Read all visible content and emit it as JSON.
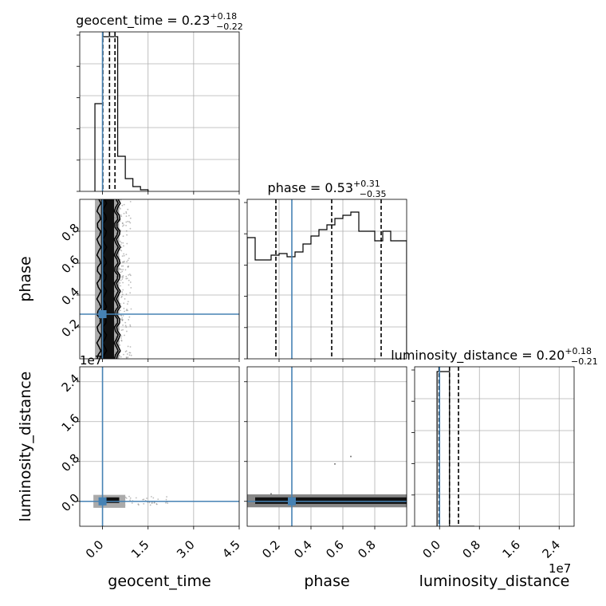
{
  "colors": {
    "truth": "#4682b4",
    "hist": "#000000",
    "grid": "#b0b0b0",
    "density": "#000000"
  },
  "chart_data": {
    "type": "corner",
    "parameters": [
      "geocent_time",
      "phase",
      "luminosity_distance"
    ],
    "axis_labels": {
      "geocent_time": "geocent_time",
      "phase": "phase",
      "luminosity_distance": "luminosity_distance"
    },
    "titles": [
      {
        "param": "geocent_time",
        "name": "geocent_time",
        "median": "0.23",
        "plus": "+0.18",
        "minus": "−0.22"
      },
      {
        "param": "phase",
        "name": "phase",
        "median": "0.53",
        "plus": "+0.31",
        "minus": "−0.35"
      },
      {
        "param": "luminosity_distance",
        "name": "luminosity_distance",
        "median": "0.20",
        "plus": "+0.18",
        "minus": "−0.21"
      }
    ],
    "offset_text": "1e7",
    "ranges": {
      "geocent_time": [
        -0.75,
        4.5
      ],
      "phase": [
        0.0,
        1.0
      ],
      "luminosity_distance": [
        -0.5,
        2.7
      ]
    },
    "ticks": {
      "geocent_time": {
        "values": [
          0.0,
          1.5,
          3.0,
          4.5
        ],
        "labels": [
          "0.0",
          "1.5",
          "3.0",
          "4.5"
        ]
      },
      "phase_x": {
        "values": [
          0.2,
          0.4,
          0.6,
          0.8
        ],
        "labels": [
          "0.2",
          "0.4",
          "0.6",
          "0.8"
        ]
      },
      "phase_y": {
        "values": [
          0.2,
          0.4,
          0.6,
          0.8
        ],
        "labels": [
          "0.2",
          "0.4",
          "0.6",
          "0.8"
        ]
      },
      "luminosity_distance": {
        "values": [
          0.0,
          0.8,
          1.6,
          2.4
        ],
        "labels": [
          "0.0",
          "0.8",
          "1.6",
          "2.4"
        ]
      }
    },
    "truths": {
      "geocent_time": 0.0,
      "phase": 0.28,
      "luminosity_distance": 0.0
    },
    "quantiles": {
      "geocent_time": [
        0.01,
        0.23,
        0.41
      ],
      "phase": [
        0.18,
        0.53,
        0.84
      ],
      "luminosity_distance": [
        -0.01,
        0.2,
        0.38
      ]
    },
    "histograms": {
      "geocent_time": {
        "edges": [
          -0.25,
          0.0,
          0.25,
          0.5,
          0.75,
          1.0,
          1.25,
          1.5
        ],
        "values": [
          0.55,
          0.97,
          0.97,
          0.22,
          0.08,
          0.03,
          0.01
        ]
      },
      "phase": {
        "edges": [
          0.0,
          0.05,
          0.1,
          0.15,
          0.2,
          0.25,
          0.3,
          0.35,
          0.4,
          0.45,
          0.5,
          0.55,
          0.6,
          0.65,
          0.7,
          0.75,
          0.8,
          0.85,
          0.9,
          0.95,
          1.0
        ],
        "values": [
          0.76,
          0.62,
          0.62,
          0.65,
          0.66,
          0.64,
          0.67,
          0.72,
          0.77,
          0.81,
          0.84,
          0.88,
          0.9,
          0.92,
          0.8,
          0.8,
          0.74,
          0.8,
          0.74,
          0.74
        ]
      },
      "luminosity_distance": {
        "edges": [
          -0.05,
          0.2,
          0.45,
          0.7
        ],
        "values": [
          0.97,
          0.0,
          0.0
        ]
      }
    },
    "grid": true
  }
}
